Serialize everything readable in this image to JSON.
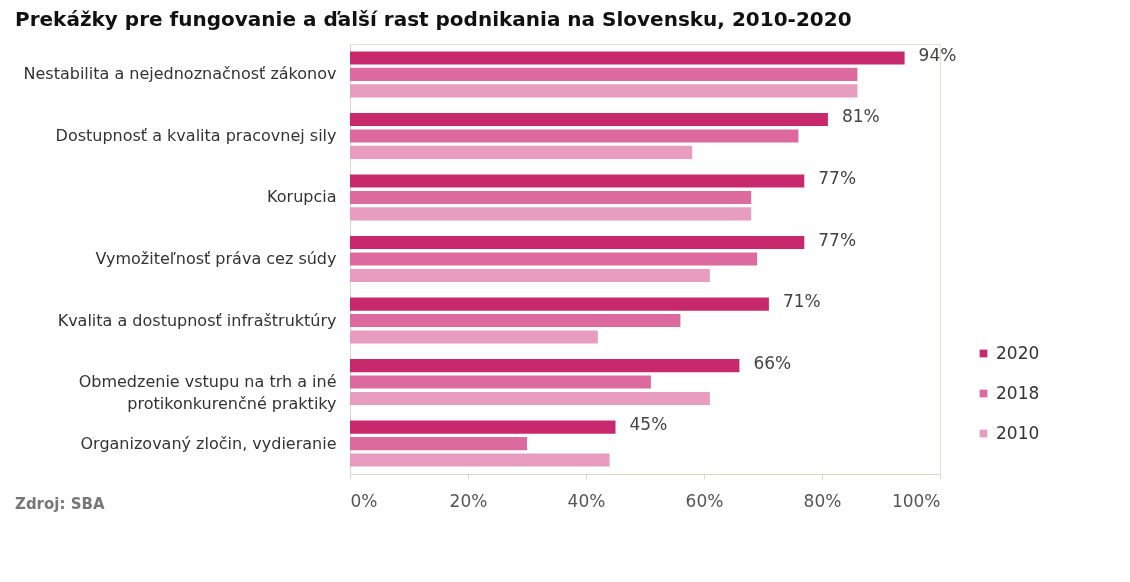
{
  "chart_data": {
    "type": "bar",
    "orientation": "horizontal",
    "title": "Prekážky pre fungovanie a ďalší rast podnikania na Slovensku, 2010-2020",
    "categories": [
      "Nestabilita a nejednoznačnosť zákonov",
      "Dostupnosť a kvalita pracovnej sily",
      "Korupcia",
      "Vymožiteľnosť práva cez súdy",
      "Kvalita a dostupnosť infraštruktúry",
      "Obmedzenie vstupu na trh a iné\nprotikonkurenčné praktiky",
      "Organizovaný zločin, vydieranie"
    ],
    "series": [
      {
        "name": "2020",
        "color": "#c8286c",
        "values": [
          94,
          81,
          77,
          77,
          71,
          66,
          45
        ],
        "value_labels": [
          "94%",
          "81%",
          "77%",
          "77%",
          "71%",
          "66%",
          "45%"
        ]
      },
      {
        "name": "2018",
        "color": "#dc6a9e",
        "values": [
          86,
          76,
          68,
          69,
          56,
          51,
          30
        ]
      },
      {
        "name": "2010",
        "color": "#e89cbf",
        "values": [
          86,
          58,
          68,
          61,
          42,
          61,
          44
        ]
      }
    ],
    "xlim": [
      0,
      100
    ],
    "xticks": [
      {
        "value": 0,
        "label": "0%"
      },
      {
        "value": 20,
        "label": "20%"
      },
      {
        "value": 40,
        "label": "40%"
      },
      {
        "value": 60,
        "label": "60%"
      },
      {
        "value": 80,
        "label": "80%"
      },
      {
        "value": 100,
        "label": "100%"
      }
    ],
    "grid": false,
    "legend": "right",
    "annotations": [
      "Zdroj: SBA"
    ]
  }
}
